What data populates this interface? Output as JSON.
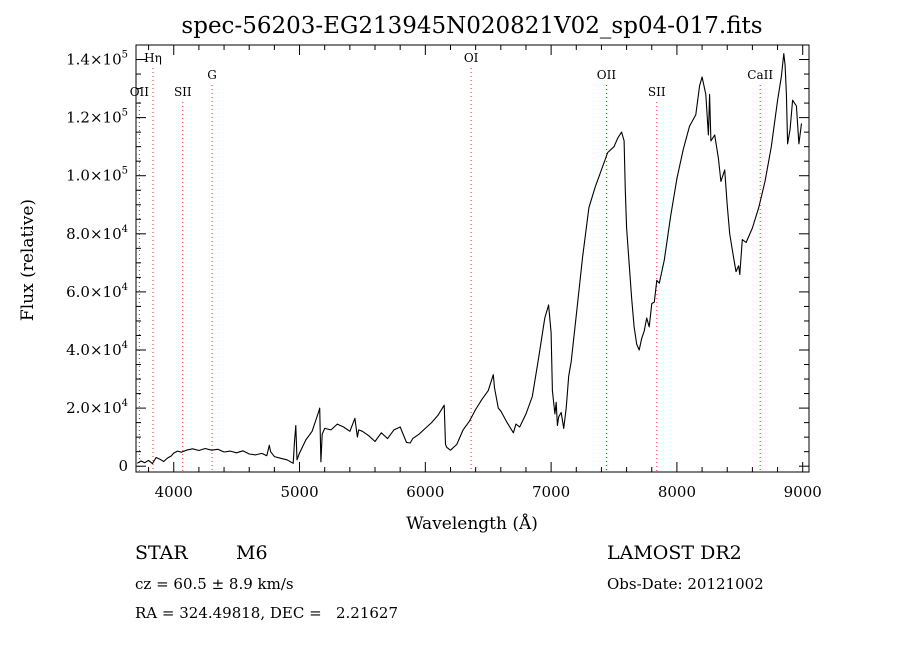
{
  "chart_data": {
    "type": "line",
    "title": "spec-56203-EG213945N020821V02_sp04-017.fits",
    "xlabel": "Wavelength (Å)",
    "ylabel": "Flux (relative)",
    "xlim": [
      3700,
      9050
    ],
    "ylim": [
      -2000,
      145000
    ],
    "x_ticks": [
      {
        "value": 4000,
        "label": "4000"
      },
      {
        "value": 5000,
        "label": "5000"
      },
      {
        "value": 6000,
        "label": "6000"
      },
      {
        "value": 7000,
        "label": "7000"
      },
      {
        "value": 8000,
        "label": "8000"
      },
      {
        "value": 9000,
        "label": "9000"
      }
    ],
    "y_ticks": [
      {
        "value": 0,
        "mantissa": "0",
        "exponent": ""
      },
      {
        "value": 20000,
        "mantissa": "2.0×10",
        "exponent": "4"
      },
      {
        "value": 40000,
        "mantissa": "4.0×10",
        "exponent": "4"
      },
      {
        "value": 60000,
        "mantissa": "6.0×10",
        "exponent": "4"
      },
      {
        "value": 80000,
        "mantissa": "8.0×10",
        "exponent": "4"
      },
      {
        "value": 100000,
        "mantissa": "1.0×10",
        "exponent": "5"
      },
      {
        "value": 120000,
        "mantissa": "1.2×10",
        "exponent": "5"
      },
      {
        "value": 140000,
        "mantissa": "1.4×10",
        "exponent": "5"
      }
    ],
    "lines": [
      {
        "label": "OII",
        "x": 3727,
        "level": "low"
      },
      {
        "label": "Hη",
        "x": 3835,
        "level": "high"
      },
      {
        "label": "SII",
        "x": 4072,
        "level": "low"
      },
      {
        "label": "G",
        "x": 4305,
        "level": "mid"
      },
      {
        "label": "OI",
        "x": 6364,
        "level": "high"
      },
      {
        "label": "OII",
        "x": 7440,
        "level": "mid"
      },
      {
        "label": "SII",
        "x": 7840,
        "level": "low"
      },
      {
        "label": "CaII",
        "x": 8662,
        "level": "mid"
      }
    ],
    "series": [
      {
        "name": "flux",
        "x": [
          3710,
          3740,
          3770,
          3800,
          3830,
          3860,
          3890,
          3920,
          3950,
          3980,
          4000,
          4030,
          4060,
          4100,
          4150,
          4200,
          4250,
          4300,
          4350,
          4400,
          4450,
          4500,
          4550,
          4600,
          4650,
          4700,
          4740,
          4760,
          4770,
          4800,
          4850,
          4900,
          4950,
          4960,
          4970,
          4980,
          5000,
          5050,
          5100,
          5150,
          5160,
          5170,
          5180,
          5200,
          5250,
          5300,
          5350,
          5400,
          5440,
          5460,
          5470,
          5500,
          5550,
          5600,
          5650,
          5700,
          5750,
          5800,
          5850,
          5880,
          5900,
          5950,
          6000,
          6050,
          6100,
          6150,
          6160,
          6170,
          6200,
          6250,
          6300,
          6350,
          6400,
          6450,
          6500,
          6540,
          6550,
          6580,
          6600,
          6650,
          6700,
          6720,
          6750,
          6800,
          6850,
          6900,
          6950,
          6980,
          7000,
          7010,
          7030,
          7040,
          7050,
          7060,
          7080,
          7100,
          7120,
          7140,
          7160,
          7200,
          7250,
          7300,
          7350,
          7400,
          7450,
          7500,
          7530,
          7560,
          7580,
          7590,
          7600,
          7620,
          7640,
          7660,
          7680,
          7700,
          7720,
          7740,
          7760,
          7780,
          7800,
          7820,
          7840,
          7860,
          7900,
          7950,
          8000,
          8050,
          8100,
          8150,
          8180,
          8200,
          8230,
          8250,
          8260,
          8270,
          8300,
          8330,
          8350,
          8380,
          8400,
          8420,
          8450,
          8470,
          8490,
          8500,
          8520,
          8550,
          8600,
          8650,
          8700,
          8750,
          8800,
          8830,
          8850,
          8860,
          8870,
          8880,
          8900,
          8920,
          8950,
          8970,
          8990
        ],
        "values": [
          1000,
          1800,
          1200,
          2000,
          900,
          3000,
          2400,
          1600,
          2800,
          3500,
          4500,
          5200,
          4800,
          5500,
          6000,
          5400,
          6100,
          5500,
          5800,
          4900,
          5200,
          4600,
          5300,
          4200,
          3900,
          4400,
          3600,
          7200,
          5000,
          3300,
          2700,
          2200,
          1000,
          8500,
          14000,
          2200,
          4500,
          9000,
          12000,
          18500,
          20000,
          1500,
          11000,
          13000,
          12500,
          14500,
          13500,
          12000,
          16500,
          10000,
          12500,
          12000,
          10500,
          8500,
          11500,
          9500,
          12500,
          13500,
          8200,
          8000,
          9500,
          11000,
          13000,
          15000,
          17500,
          21000,
          7500,
          6500,
          5500,
          7500,
          12500,
          15500,
          19500,
          23000,
          26000,
          31500,
          27000,
          20000,
          19000,
          15000,
          11500,
          14500,
          13500,
          18000,
          24000,
          37000,
          51000,
          55500,
          46000,
          26000,
          18000,
          22000,
          14000,
          17000,
          18500,
          13000,
          20000,
          31000,
          36000,
          52000,
          72000,
          89000,
          96000,
          102000,
          108000,
          110000,
          113000,
          115000,
          112000,
          95000,
          82000,
          70000,
          58000,
          48000,
          42000,
          40000,
          44000,
          46500,
          51000,
          48000,
          56000,
          56500,
          64000,
          63000,
          71000,
          86000,
          99000,
          109000,
          117000,
          121000,
          131000,
          134000,
          128000,
          114000,
          128000,
          112000,
          114000,
          106000,
          98000,
          102000,
          90000,
          80000,
          72000,
          67000,
          69000,
          66000,
          78000,
          77000,
          82000,
          89000,
          98000,
          110000,
          126000,
          134000,
          142000,
          138000,
          128000,
          111000,
          116000,
          126000,
          124000,
          111000,
          118000
        ]
      }
    ]
  },
  "info": {
    "object_class": "STAR",
    "subclass": "M6",
    "survey": "LAMOST DR2",
    "cz": "cz = 60.5 ± 8.9 km/s",
    "coords": "RA = 324.49818, DEC =   2.21627",
    "obs_date": "Obs-Date: 20121002"
  }
}
